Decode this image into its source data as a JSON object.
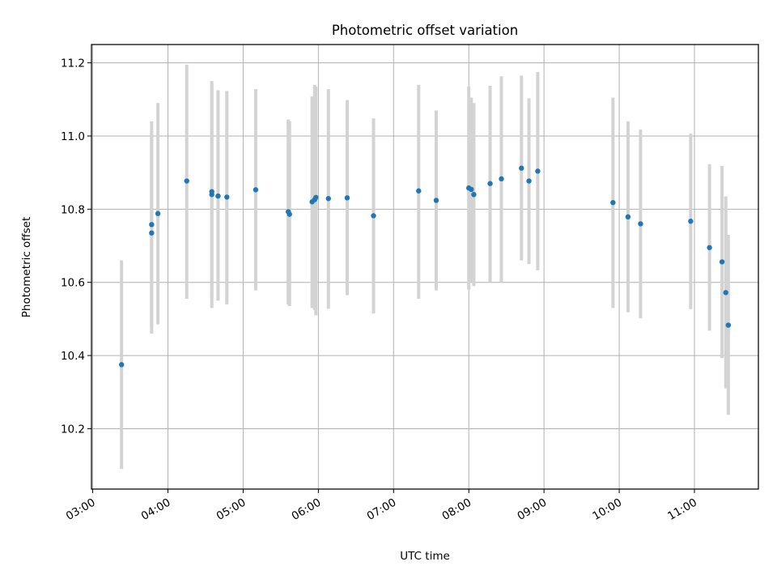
{
  "chart_data": {
    "type": "scatter",
    "title": "Photometric offset variation",
    "xlabel": "UTC time",
    "ylabel": "Photometric offset",
    "x_ticks": [
      "03:00",
      "04:00",
      "05:00",
      "06:00",
      "07:00",
      "08:00",
      "09:00",
      "10:00",
      "11:00"
    ],
    "y_ticks": [
      "10.2",
      "10.4",
      "10.6",
      "10.8",
      "11.0",
      "11.2"
    ],
    "xlim": [
      "02:59",
      "11:51"
    ],
    "ylim": [
      10.035,
      11.25
    ],
    "grid": true,
    "colors": {
      "point": "#1f77b4",
      "errorbar": "#d3d3d3",
      "grid": "#b0b0b0"
    },
    "points": [
      {
        "t": "03:23",
        "y": 10.375,
        "lo": 10.09,
        "hi": 10.66
      },
      {
        "t": "03:47",
        "y": 10.758,
        "lo": 10.48,
        "hi": 11.04
      },
      {
        "t": "03:47",
        "y": 10.735,
        "lo": 10.46,
        "hi": 11.01
      },
      {
        "t": "03:52",
        "y": 10.788,
        "lo": 10.485,
        "hi": 11.09
      },
      {
        "t": "04:15",
        "y": 10.877,
        "lo": 10.555,
        "hi": 11.195
      },
      {
        "t": "04:35",
        "y": 10.848,
        "lo": 10.56,
        "hi": 11.15
      },
      {
        "t": "04:35",
        "y": 10.84,
        "lo": 10.53,
        "hi": 11.14
      },
      {
        "t": "04:40",
        "y": 10.836,
        "lo": 10.55,
        "hi": 11.125
      },
      {
        "t": "04:47",
        "y": 10.833,
        "lo": 10.54,
        "hi": 11.123
      },
      {
        "t": "05:10",
        "y": 10.853,
        "lo": 10.578,
        "hi": 11.128
      },
      {
        "t": "05:36",
        "y": 10.793,
        "lo": 10.54,
        "hi": 11.045
      },
      {
        "t": "05:37",
        "y": 10.786,
        "lo": 10.535,
        "hi": 11.04
      },
      {
        "t": "05:55",
        "y": 10.82,
        "lo": 10.53,
        "hi": 11.108
      },
      {
        "t": "05:57",
        "y": 10.826,
        "lo": 10.525,
        "hi": 11.14
      },
      {
        "t": "05:58",
        "y": 10.832,
        "lo": 10.51,
        "hi": 11.135
      },
      {
        "t": "06:08",
        "y": 10.829,
        "lo": 10.528,
        "hi": 11.128
      },
      {
        "t": "06:23",
        "y": 10.831,
        "lo": 10.565,
        "hi": 11.098
      },
      {
        "t": "06:44",
        "y": 10.782,
        "lo": 10.515,
        "hi": 11.048
      },
      {
        "t": "07:20",
        "y": 10.85,
        "lo": 10.555,
        "hi": 11.14
      },
      {
        "t": "07:34",
        "y": 10.824,
        "lo": 10.578,
        "hi": 11.07
      },
      {
        "t": "08:00",
        "y": 10.858,
        "lo": 10.58,
        "hi": 11.135
      },
      {
        "t": "08:02",
        "y": 10.854,
        "lo": 10.6,
        "hi": 11.105
      },
      {
        "t": "08:04",
        "y": 10.84,
        "lo": 10.59,
        "hi": 11.09
      },
      {
        "t": "08:17",
        "y": 10.87,
        "lo": 10.6,
        "hi": 11.137
      },
      {
        "t": "08:26",
        "y": 10.883,
        "lo": 10.6,
        "hi": 11.163
      },
      {
        "t": "08:42",
        "y": 10.912,
        "lo": 10.66,
        "hi": 11.165
      },
      {
        "t": "08:48",
        "y": 10.877,
        "lo": 10.65,
        "hi": 11.103
      },
      {
        "t": "08:55",
        "y": 10.904,
        "lo": 10.633,
        "hi": 11.175
      },
      {
        "t": "09:55",
        "y": 10.818,
        "lo": 10.53,
        "hi": 11.105
      },
      {
        "t": "10:07",
        "y": 10.779,
        "lo": 10.518,
        "hi": 11.04
      },
      {
        "t": "10:17",
        "y": 10.76,
        "lo": 10.502,
        "hi": 11.018
      },
      {
        "t": "10:57",
        "y": 10.767,
        "lo": 10.527,
        "hi": 11.007
      },
      {
        "t": "11:12",
        "y": 10.695,
        "lo": 10.468,
        "hi": 10.923
      },
      {
        "t": "11:22",
        "y": 10.656,
        "lo": 10.393,
        "hi": 10.918
      },
      {
        "t": "11:25",
        "y": 10.572,
        "lo": 10.31,
        "hi": 10.835
      },
      {
        "t": "11:27",
        "y": 10.483,
        "lo": 10.238,
        "hi": 10.73
      }
    ]
  }
}
